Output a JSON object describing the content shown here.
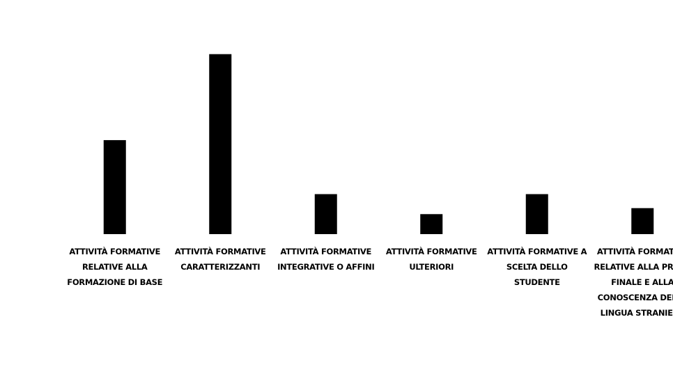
{
  "chart_data": {
    "type": "bar",
    "categories": [
      "ATTIVITÀ FORMATIVE RELATIVE ALLA FORMAZIONE DI BASE",
      "ATTIVITÀ FORMATIVE CARATTERIZZANTI",
      "ATTIVITÀ FORMATIVE INTEGRATIVE O AFFINI",
      "ATTIVITÀ FORMATIVE ULTERIORI",
      "ATTIVITÀ FORMATIVE A SCELTA DELLO STUDENTE",
      "ATTIVITÀ FORMATIVE RELATIVE ALLA PROVA FINALE E ALLA CONOSCENZA DELLA LINGUA STRANIERA"
    ],
    "values": [
      47,
      90,
      20,
      10,
      20,
      13
    ],
    "color": "#000000",
    "ylim": [
      0,
      100
    ]
  }
}
